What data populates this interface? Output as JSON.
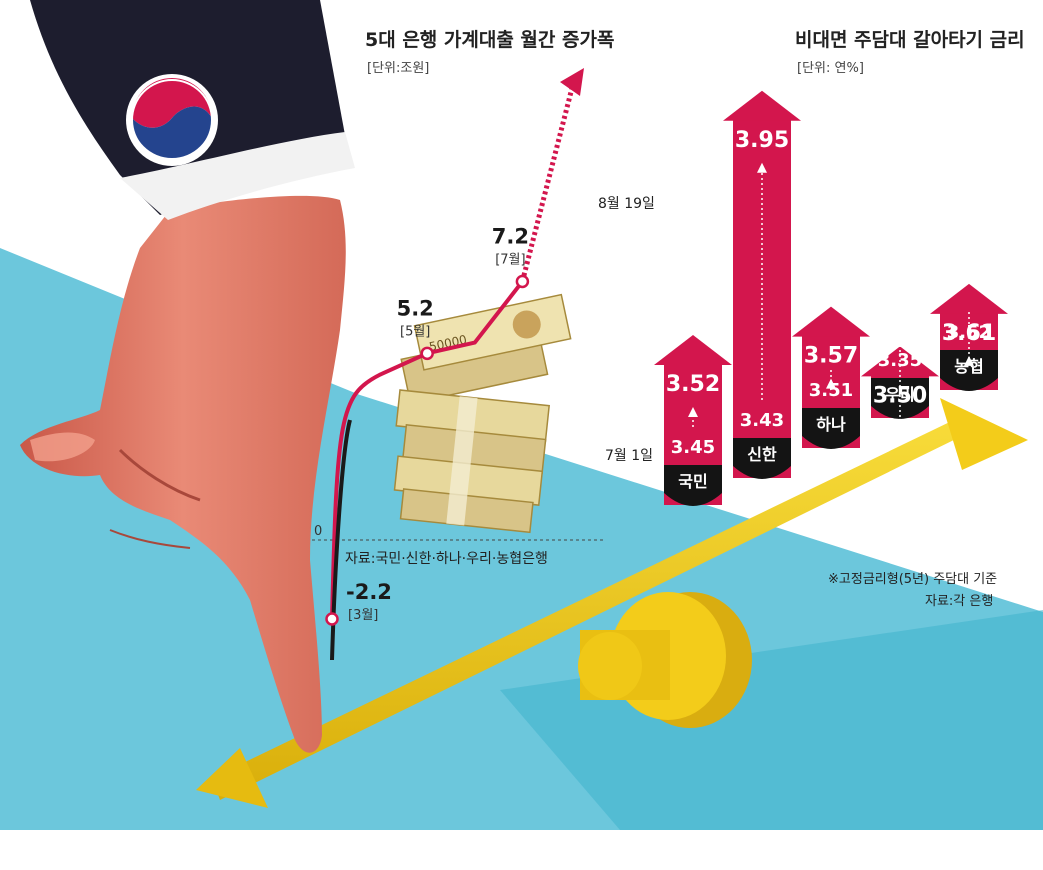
{
  "chart_data": [
    {
      "type": "line",
      "title": "5대 은행 가계대출 월간 증가폭",
      "unit_label": "[단위:조원]",
      "zero_label": "0",
      "source": "자료:국민·신한·하나·우리·농협은행",
      "points": [
        {
          "label": "-2.2",
          "month_label": "[3월]",
          "month": 3,
          "value": -2.2
        },
        {
          "label": "5.2",
          "month_label": "[5월]",
          "month": 5,
          "value": 5.2
        },
        {
          "label": "7.2",
          "month_label": "[7월]",
          "month": 7,
          "value": 7.2
        }
      ],
      "unlabeled_points": [
        {
          "month": 4,
          "value": 4.6
        },
        {
          "month": 6,
          "value": 5.5
        }
      ]
    },
    {
      "type": "bar",
      "title": "비대면 주담대 갈아타기 금리",
      "unit_label": "[단위: 연%]",
      "start_label": "7월 1일",
      "end_label": "8월 19일",
      "categories": [
        "국민",
        "신한",
        "하나",
        "우리",
        "농협"
      ],
      "series": [
        {
          "name": "7월 1일",
          "values": [
            3.45,
            3.43,
            3.51,
            3.35,
            3.52
          ]
        },
        {
          "name": "8월 19일",
          "values": [
            3.52,
            3.95,
            3.57,
            3.5,
            3.61
          ]
        }
      ],
      "top_labels": [
        "3.52",
        "3.95",
        "3.57",
        "3.50",
        "3.61"
      ],
      "bottom_labels": [
        "3.45",
        "3.43",
        "3.51",
        "3.35",
        "3.52"
      ],
      "note": "※고정금리형(5년) 주담대 기준",
      "source": "자료:각 은행"
    }
  ],
  "illustration": {
    "money_label": "50000",
    "colors": {
      "cyan": "#6cc7dc",
      "red": "#d3164d",
      "yellow": "#f3cc1a",
      "navy": "#1d1d2e",
      "skin": "#e37766"
    },
    "icons": [
      "government-emblem-icon",
      "hand-icon",
      "seesaw-icon",
      "cash-stack-icon"
    ]
  }
}
